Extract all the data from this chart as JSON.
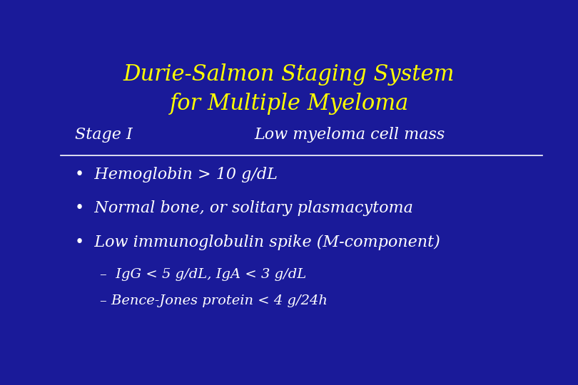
{
  "bg_color": "#1a1a99",
  "title_line1": "Durie-Salmon Staging System",
  "title_line2": "for Multiple Myeloma",
  "title_color": "#ffff00",
  "title_fontsize": 22,
  "stage_label": "Stage I",
  "stage_right": "Low myeloma cell mass",
  "stage_color": "#ffffff",
  "stage_fontsize": 16,
  "bullet_color": "#ffffff",
  "bullet_fontsize": 16,
  "bullets": [
    "Hemoglobin > 10 g/dL",
    "Normal bone, or solitary plasmacytoma",
    "Low immunoglobulin spike (M-component)"
  ],
  "sub_bullets": [
    "–  IgG < 5 g/dL, IgA < 3 g/dL",
    "– Bence-Jones protein < 4 g/24h"
  ],
  "sub_bullet_fontsize": 14,
  "line_color": "#ffffff"
}
